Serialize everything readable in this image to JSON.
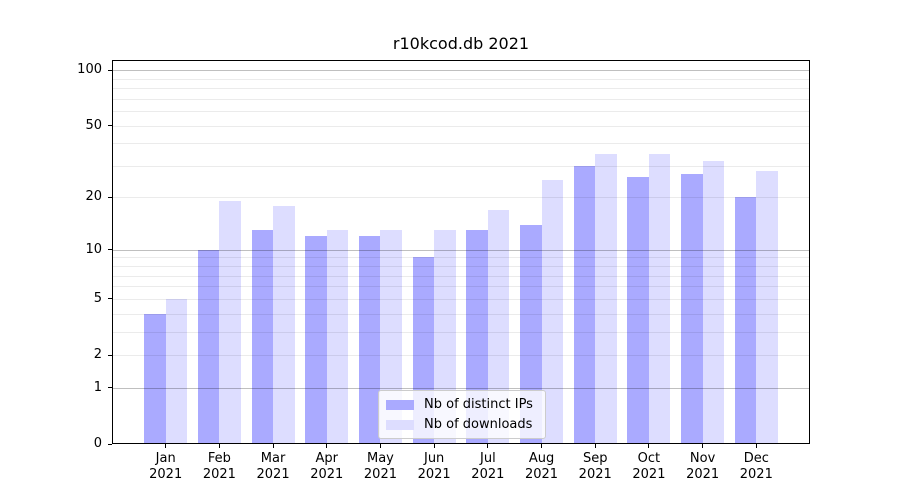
{
  "figure": {
    "background": "#ffffff"
  },
  "chart_data": {
    "type": "bar",
    "title": "r10kcod.db 2021",
    "xlabel": "",
    "ylabel": "",
    "yscale": "log1p",
    "ylim": [
      0,
      113
    ],
    "grid": "horizontal",
    "legend_position": "inside-bottom-center",
    "categories": [
      {
        "month": "Jan",
        "year": "2021"
      },
      {
        "month": "Feb",
        "year": "2021"
      },
      {
        "month": "Mar",
        "year": "2021"
      },
      {
        "month": "Apr",
        "year": "2021"
      },
      {
        "month": "May",
        "year": "2021"
      },
      {
        "month": "Jun",
        "year": "2021"
      },
      {
        "month": "Jul",
        "year": "2021"
      },
      {
        "month": "Aug",
        "year": "2021"
      },
      {
        "month": "Sep",
        "year": "2021"
      },
      {
        "month": "Oct",
        "year": "2021"
      },
      {
        "month": "Nov",
        "year": "2021"
      },
      {
        "month": "Dec",
        "year": "2021"
      }
    ],
    "series": [
      {
        "key": "ips",
        "name": "Nb of distinct IPs",
        "color": "#aaaaff",
        "values": [
          4,
          10,
          13,
          12,
          12,
          9,
          13,
          14,
          30,
          26,
          27,
          20
        ]
      },
      {
        "key": "downloads",
        "name": "Nb of downloads",
        "color": "#ddddff",
        "values": [
          5,
          19,
          18,
          13,
          13,
          13,
          17,
          25,
          35,
          35,
          32,
          28
        ]
      }
    ],
    "y_ticks": [
      0,
      1,
      2,
      5,
      10,
      20,
      50,
      100
    ],
    "gridlines": {
      "major": [
        1,
        10,
        100
      ],
      "minor": [
        2,
        3,
        4,
        5,
        6,
        7,
        8,
        9,
        20,
        30,
        40,
        50,
        60,
        70,
        80,
        90
      ]
    },
    "colors": {
      "grid_major": "rgba(0,0,0,0.25)",
      "grid_minor": "rgba(0,0,0,0.08)",
      "axis": "#000000",
      "text": "#000000",
      "legend_border": "#cccccc",
      "legend_bg": "rgba(255,255,255,0.8)"
    }
  }
}
